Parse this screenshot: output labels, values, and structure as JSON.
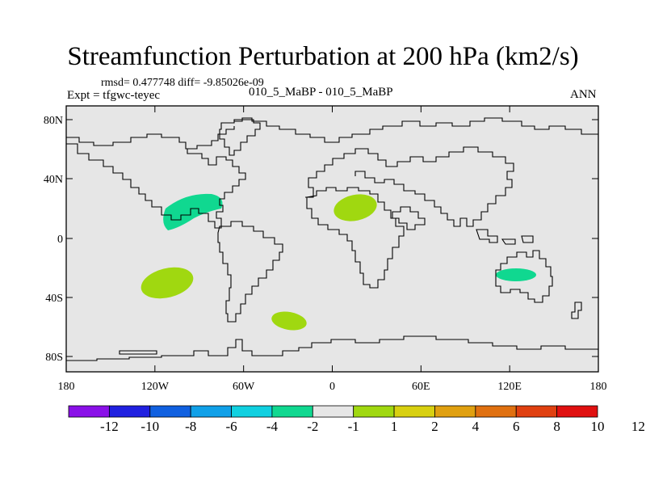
{
  "title": "Streamfunction Perturbation at 200 hPa (km2/s)",
  "stats": "rmsd= 0.477748 diff= -9.85026e-09",
  "experiment": "Expt = tfgwc-teyec",
  "case_label": "010_5_MaBP - 010_5_MaBP",
  "season": "ANN",
  "colors": {
    "ocean": "#e6e6e6",
    "coast": "#000000",
    "neg": "#10d890",
    "pos": "#a0d810"
  },
  "map": {
    "lat_ticks": [
      "80N",
      "40N",
      "0",
      "40S",
      "80S"
    ],
    "lon_ticks": [
      "180",
      "120W",
      "60W",
      "0",
      "60E",
      "120E",
      "180"
    ]
  },
  "anomalies": [
    {
      "name": "north-atlantic-negative",
      "sign": "negative",
      "bin": "-2 to -1",
      "center_lon": -95,
      "center_lat": 18
    },
    {
      "name": "africa-positive",
      "sign": "positive",
      "bin": "1 to 2",
      "center_lon": 16,
      "center_lat": 20
    },
    {
      "name": "south-pacific-positive",
      "sign": "positive",
      "bin": "1 to 2",
      "center_lon": -118,
      "center_lat": -32
    },
    {
      "name": "south-atlantic-positive",
      "sign": "positive",
      "bin": "1 to 2",
      "center_lon": -30,
      "center_lat": -56
    },
    {
      "name": "australia-negative",
      "sign": "negative",
      "bin": "-2 to -1",
      "center_lon": 125,
      "center_lat": -25
    }
  ],
  "colorbar": {
    "colors": [
      "#8a10e8",
      "#2020e0",
      "#1060e0",
      "#10a0e8",
      "#10d0e0",
      "#10d890",
      "#e6e6e6",
      "#a0d810",
      "#d8d010",
      "#e0a010",
      "#e07010",
      "#e04010",
      "#e01010"
    ],
    "labels": [
      "-12",
      "-10",
      "-8",
      "-6",
      "-4",
      "-2",
      "-1",
      "1",
      "2",
      "4",
      "6",
      "8",
      "10",
      "12"
    ]
  }
}
